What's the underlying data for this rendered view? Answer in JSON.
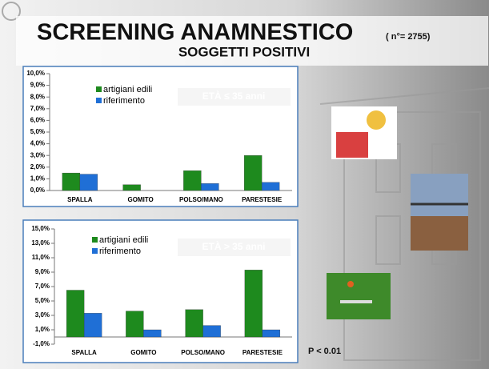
{
  "slide": {
    "title": "SCREENING ANAMNESTICO",
    "count": "( n°= 2755)",
    "subtitle": "SOGGETTI POSITIVI",
    "note": "P < 0.01"
  },
  "chart_data": [
    {
      "type": "bar",
      "annotation": "ETÀ ≤ 35 anni",
      "categories": [
        "SPALLA",
        "GOMITO",
        "POLSO/MANO",
        "PARESTESIE"
      ],
      "series": [
        {
          "name": "artigiani edili",
          "color": "#1e8a1e",
          "values": [
            1.5,
            0.5,
            1.7,
            3.0
          ]
        },
        {
          "name": "riferimento",
          "color": "#1f6fd6",
          "values": [
            1.4,
            0,
            0.6,
            0.7
          ]
        }
      ],
      "ylim": [
        0,
        10
      ],
      "yticks": [
        {
          "value": 0,
          "label": "0,0%"
        },
        {
          "value": 1,
          "label": "1,0%"
        },
        {
          "value": 2,
          "label": "2,0%"
        },
        {
          "value": 3,
          "label": "3,0%"
        },
        {
          "value": 4,
          "label": "4,0%"
        },
        {
          "value": 5,
          "label": "5,0%"
        },
        {
          "value": 6,
          "label": "6,0%"
        },
        {
          "value": 7,
          "label": "7,0%"
        },
        {
          "value": 8,
          "label": "8,0%"
        },
        {
          "value": 9,
          "label": "9,0%"
        },
        {
          "value": 10,
          "label": "10,0%"
        }
      ]
    },
    {
      "type": "bar",
      "annotation": "ETÀ > 35 anni",
      "categories": [
        "SPALLA",
        "GOMITO",
        "POLSO/MANO",
        "PARESTESIE"
      ],
      "series": [
        {
          "name": "artigiani edili",
          "color": "#1e8a1e",
          "values": [
            6.5,
            3.6,
            3.8,
            9.3
          ]
        },
        {
          "name": "riferimento",
          "color": "#1f6fd6",
          "values": [
            3.3,
            1.0,
            1.6,
            1.0
          ]
        }
      ],
      "ylim": [
        -1,
        15
      ],
      "yticks": [
        {
          "value": -1,
          "label": "-1,0%"
        },
        {
          "value": 1,
          "label": "1,0%"
        },
        {
          "value": 3,
          "label": "3,0%"
        },
        {
          "value": 5,
          "label": "5,0%"
        },
        {
          "value": 7,
          "label": "7,0%"
        },
        {
          "value": 9,
          "label": "9,0%"
        },
        {
          "value": 11,
          "label": "11,0%"
        },
        {
          "value": 13,
          "label": "13,0%"
        },
        {
          "value": 15,
          "label": "15,0%"
        }
      ]
    }
  ]
}
